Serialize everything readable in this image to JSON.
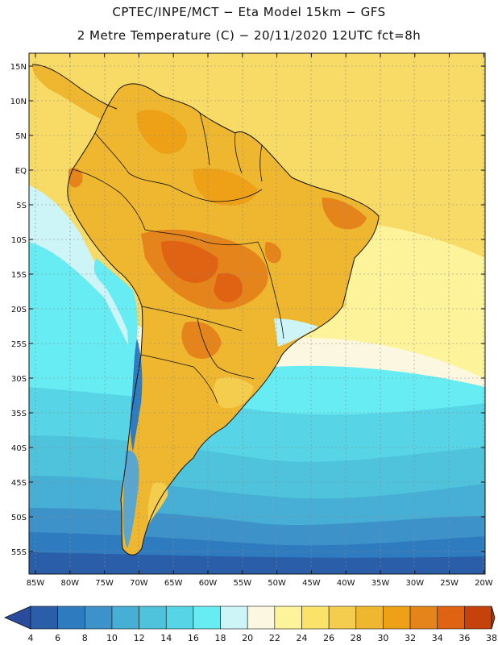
{
  "header": {
    "title_line1": "CPTEC/INPE/MCT −  Eta Model 15km − GFS",
    "title_line2": "2 Metre Temperature (C) − 20/11/2020 12UTC fct=8h"
  },
  "map": {
    "lat_labels": [
      "15N",
      "10N",
      "5N",
      "EQ",
      "5S",
      "10S",
      "15S",
      "20S",
      "25S",
      "30S",
      "35S",
      "40S",
      "45S",
      "50S",
      "55S"
    ],
    "lon_labels": [
      "85W",
      "80W",
      "75W",
      "70W",
      "65W",
      "60W",
      "55W",
      "50W",
      "45W",
      "40W",
      "35W",
      "30W",
      "25W",
      "20W"
    ]
  },
  "colorbar": {
    "ticks": [
      "4",
      "6",
      "8",
      "10",
      "12",
      "14",
      "16",
      "18",
      "20",
      "22",
      "24",
      "26",
      "28",
      "30",
      "32",
      "34",
      "36",
      "38"
    ],
    "colors": [
      "#2a5ea8",
      "#2f7bbf",
      "#3d93c9",
      "#47aed5",
      "#4fc3dc",
      "#57d5e6",
      "#66ecf2",
      "#cdf5f8",
      "#fbf7e0",
      "#fdf39a",
      "#fbe36a",
      "#f5cd4e",
      "#efb62f",
      "#eea116",
      "#e6841c",
      "#df6312",
      "#c5420d"
    ],
    "low_color": "#2b4c9c",
    "high_color": "#b83a0c"
  }
}
